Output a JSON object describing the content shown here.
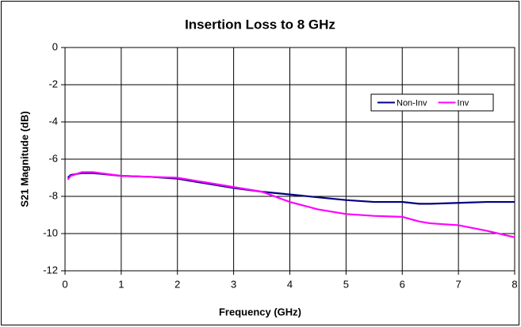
{
  "chart_data": {
    "type": "line",
    "title": "Insertion Loss to 8 GHz",
    "x_label": "Frequency (GHz)",
    "y_label": "S21 Magnitude (dB)",
    "x": [
      0.05,
      0.1,
      0.3,
      0.5,
      1,
      1.5,
      2,
      2.5,
      3,
      3.5,
      4,
      4.5,
      5,
      5.5,
      6,
      6.3,
      6.5,
      7,
      7.5,
      8
    ],
    "series": [
      {
        "name": "Non-Inv",
        "color": "#000080",
        "values": [
          -7.0,
          -6.85,
          -6.75,
          -6.75,
          -6.9,
          -6.95,
          -7.05,
          -7.3,
          -7.55,
          -7.75,
          -7.9,
          -8.05,
          -8.2,
          -8.3,
          -8.3,
          -8.4,
          -8.4,
          -8.35,
          -8.3,
          -8.3
        ]
      },
      {
        "name": "Inv",
        "color": "#ff00ff",
        "values": [
          -7.1,
          -6.9,
          -6.7,
          -6.7,
          -6.9,
          -6.95,
          -7.0,
          -7.25,
          -7.5,
          -7.75,
          -8.3,
          -8.7,
          -8.95,
          -9.05,
          -9.1,
          -9.35,
          -9.45,
          -9.55,
          -9.85,
          -10.2
        ]
      }
    ],
    "xlim": [
      0,
      8
    ],
    "xticks": [
      0,
      1,
      2,
      3,
      4,
      5,
      6,
      7,
      8
    ],
    "ylim": [
      -12,
      0
    ],
    "yticks": [
      -12,
      -10,
      -8,
      -6,
      -4,
      -2,
      0
    ],
    "grid": true,
    "legend": "upper right"
  }
}
